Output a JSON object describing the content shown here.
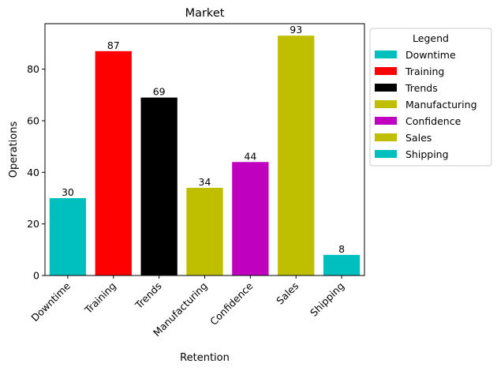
{
  "chart_data": {
    "type": "bar",
    "title": "Market",
    "xlabel": "Retention",
    "ylabel": "Operations",
    "categories": [
      "Downtime",
      "Training",
      "Trends",
      "Manufacturing",
      "Confidence",
      "Sales",
      "Shipping"
    ],
    "values": [
      30,
      87,
      69,
      34,
      44,
      93,
      8
    ],
    "colors": [
      "#00bfbf",
      "#ff0000",
      "#000000",
      "#bfbf00",
      "#bf00bf",
      "#bfbf00",
      "#00bfbf"
    ],
    "ylim": [
      0,
      97.65
    ],
    "yticks": [
      0,
      20,
      40,
      60,
      80
    ],
    "grid": false,
    "legend": {
      "title": "Legend",
      "placement": "outside-right",
      "entries": [
        "Downtime",
        "Training",
        "Trends",
        "Manufacturing",
        "Confidence",
        "Sales",
        "Shipping"
      ]
    }
  }
}
